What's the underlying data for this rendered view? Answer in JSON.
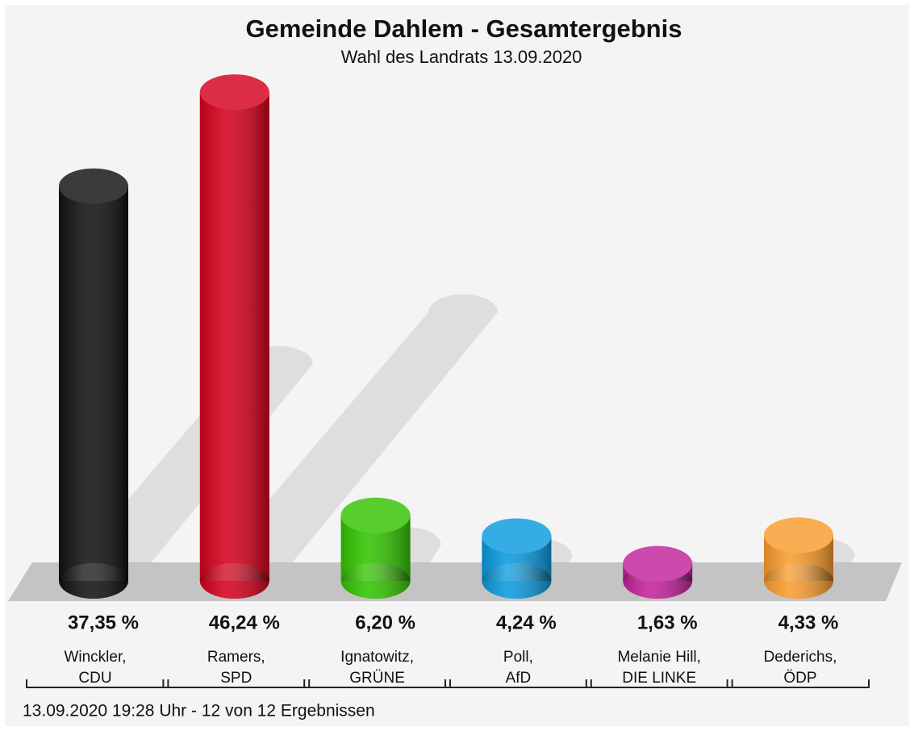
{
  "chart_data": {
    "type": "bar",
    "title": "Gemeinde Dahlem - Gesamtergebnis",
    "subtitle": "Wahl des Landrats 13.09.2020",
    "categories": [
      [
        "Winckler,",
        "CDU"
      ],
      [
        "Ramers,",
        "SPD"
      ],
      [
        "Ignatowitz,",
        "GRÜNE"
      ],
      [
        "Poll,",
        "AfD"
      ],
      [
        "Melanie Hill,",
        "DIE LINKE"
      ],
      [
        "Dederichs,",
        "ÖDP"
      ]
    ],
    "values": [
      37.35,
      46.24,
      6.2,
      4.24,
      1.63,
      4.33
    ],
    "value_labels": [
      "37,35 %",
      "46,24 %",
      "6,20 %",
      "4,24 %",
      "1,63 %",
      "4,33 %"
    ],
    "colors": [
      "#111111",
      "#d4001c",
      "#33c400",
      "#0a9ade",
      "#c4229a",
      "#f99d2e"
    ],
    "footnote": "13.09.2020 19:28 Uhr - 12 von 12 Ergebnissen"
  }
}
